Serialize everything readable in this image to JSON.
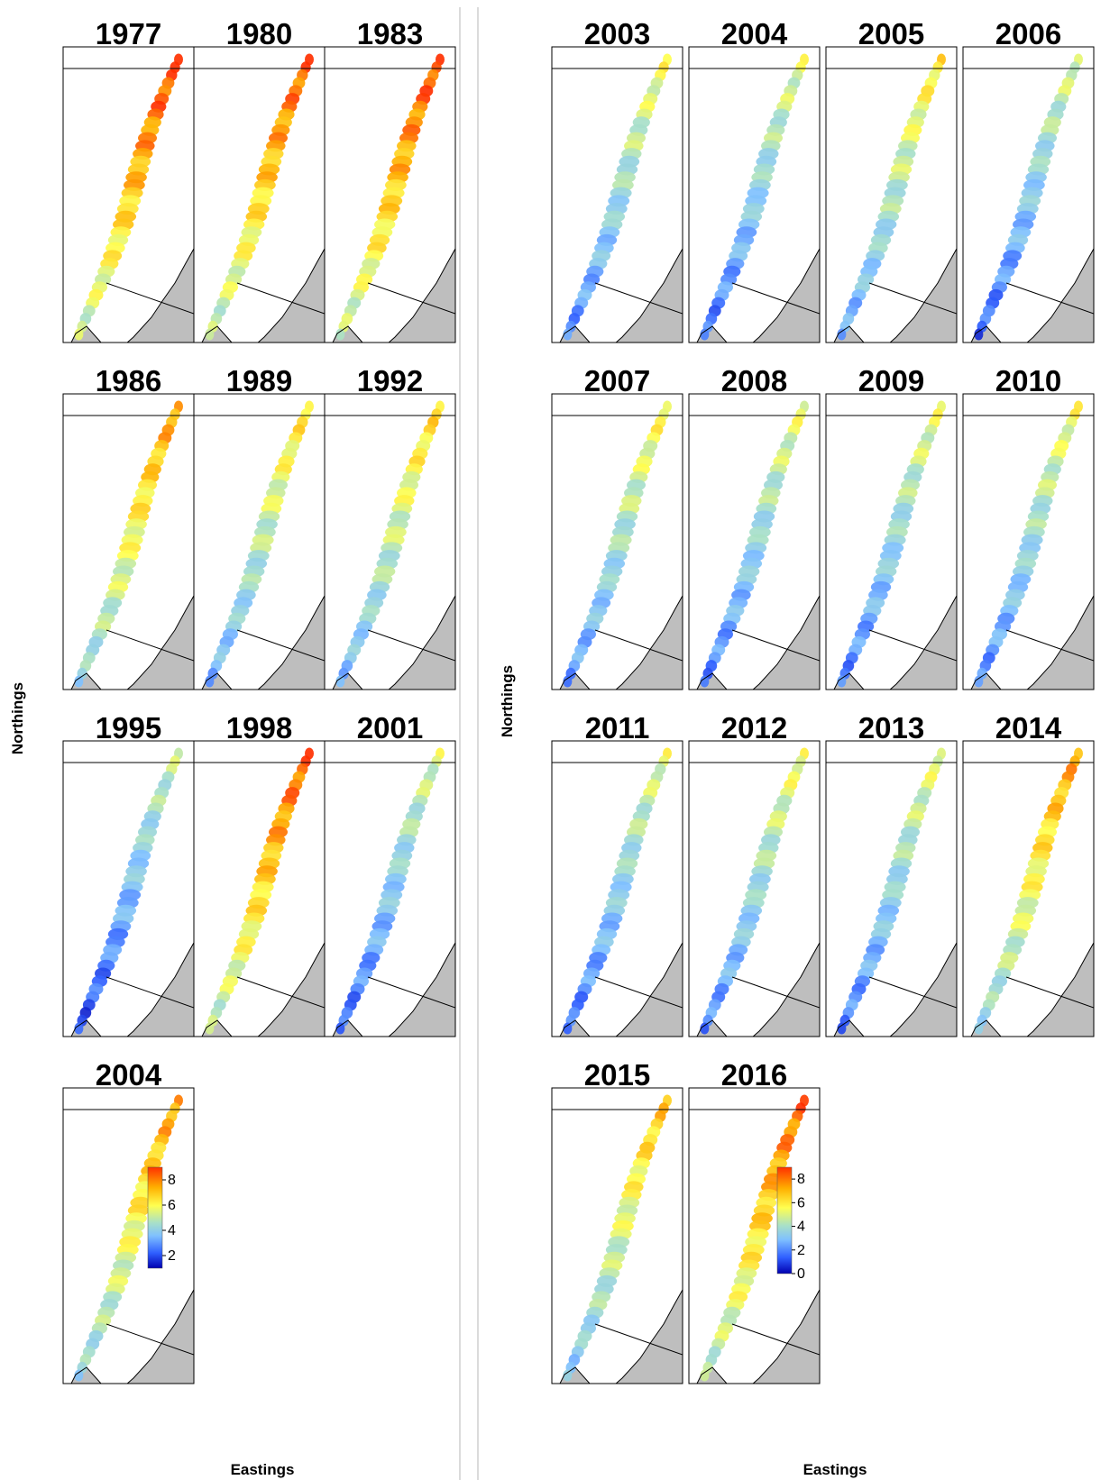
{
  "chart_data": [
    {
      "type": "heatmap",
      "panel_group": "left",
      "xlabel": "Eastings",
      "ylabel": "Northings",
      "panels": [
        {
          "year": "1977",
          "pattern": 0.75
        },
        {
          "year": "1980",
          "pattern": 0.72
        },
        {
          "year": "1983",
          "pattern": 0.74
        },
        {
          "year": "1986",
          "pattern": 0.62
        },
        {
          "year": "1989",
          "pattern": 0.5
        },
        {
          "year": "1992",
          "pattern": 0.52
        },
        {
          "year": "1995",
          "pattern": 0.32
        },
        {
          "year": "1998",
          "pattern": 0.72
        },
        {
          "year": "2001",
          "pattern": 0.36
        },
        {
          "year": "2004",
          "pattern": 0.62
        }
      ],
      "colorbar": {
        "ticks": [
          "8",
          "6",
          "4",
          "2"
        ],
        "range": [
          1,
          9
        ],
        "colors": [
          "#0000b0",
          "#2f5fff",
          "#7fc0ff",
          "#a8e0c8",
          "#ffff50",
          "#ffb000",
          "#ff3000"
        ]
      }
    },
    {
      "type": "heatmap",
      "panel_group": "right",
      "xlabel": "Eastings",
      "ylabel": "Northings",
      "panels": [
        {
          "year": "2003",
          "pattern": 0.42
        },
        {
          "year": "2004",
          "pattern": 0.38
        },
        {
          "year": "2005",
          "pattern": 0.48
        },
        {
          "year": "2006",
          "pattern": 0.36
        },
        {
          "year": "2007",
          "pattern": 0.45
        },
        {
          "year": "2008",
          "pattern": 0.4
        },
        {
          "year": "2009",
          "pattern": 0.4
        },
        {
          "year": "2010",
          "pattern": 0.42
        },
        {
          "year": "2011",
          "pattern": 0.38
        },
        {
          "year": "2012",
          "pattern": 0.42
        },
        {
          "year": "2013",
          "pattern": 0.4
        },
        {
          "year": "2014",
          "pattern": 0.62
        },
        {
          "year": "2015",
          "pattern": 0.56
        },
        {
          "year": "2016",
          "pattern": 0.7
        }
      ],
      "colorbar": {
        "ticks": [
          "8",
          "6",
          "4",
          "2",
          "0"
        ],
        "range": [
          0,
          9
        ],
        "colors": [
          "#0000b0",
          "#2f5fff",
          "#7fc0ff",
          "#a8e0c8",
          "#ffff50",
          "#ffb000",
          "#ff3000"
        ]
      }
    }
  ]
}
